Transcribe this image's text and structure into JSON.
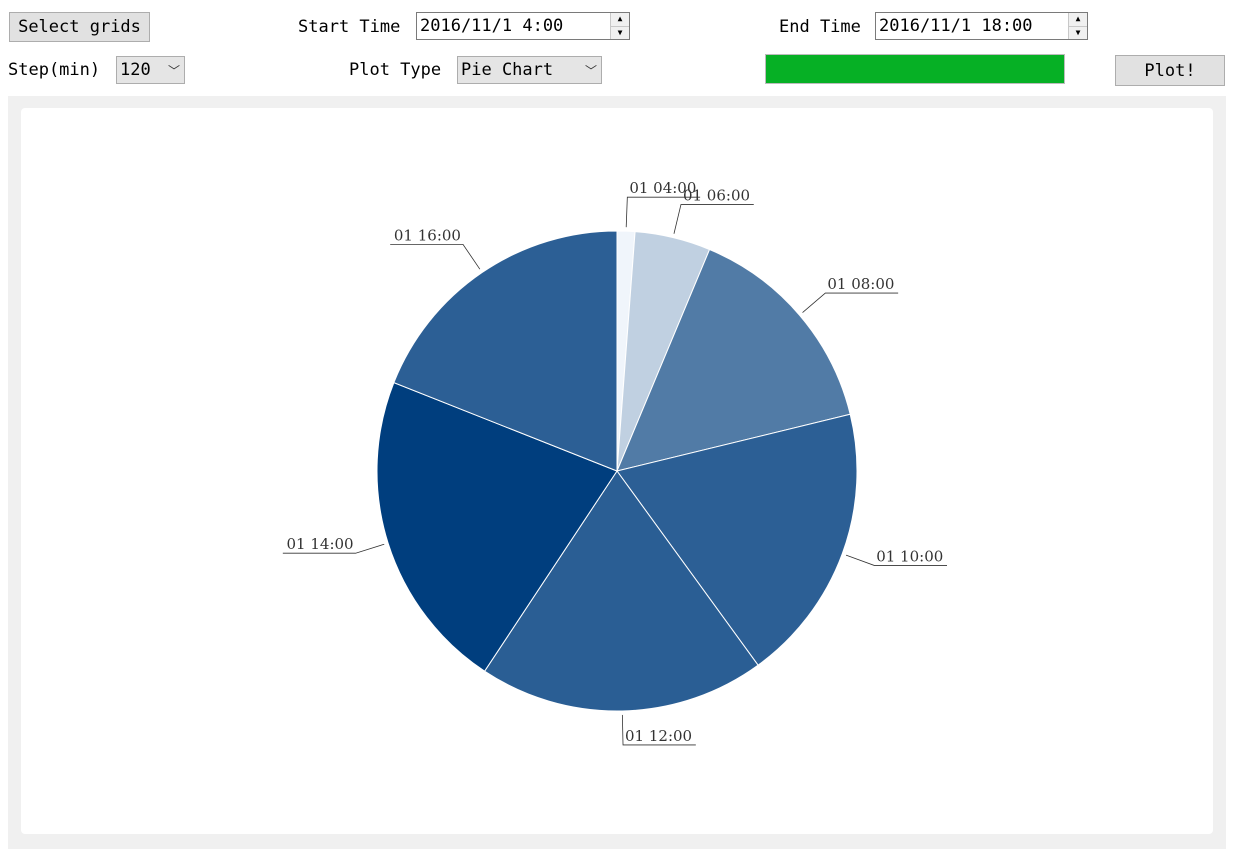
{
  "toolbar": {
    "select_grids_label": "Select grids",
    "start_time_label": "Start Time",
    "start_time_value": "2016/11/1 4:00",
    "end_time_label": "End Time",
    "end_time_value": "2016/11/1 18:00",
    "step_label": "Step(min)",
    "step_value": "120",
    "plot_type_label": "Plot Type",
    "plot_type_value": "Pie Chart",
    "progress_percent": 100,
    "progress_color": "#06b025",
    "plot_button_label": "Plot!",
    "icons": {
      "spin_up": "up-arrow-icon",
      "spin_down": "down-arrow-icon",
      "dropdown": "chevron-down-icon"
    }
  },
  "chart_data": {
    "type": "pie",
    "title": "",
    "start_angle": "12 o'clock, clockwise",
    "labels": [
      "01 04:00",
      "01 06:00",
      "01 08:00",
      "01 10:00",
      "01 12:00",
      "01 14:00",
      "01 16:00"
    ],
    "values": [
      1.2,
      5.1,
      14.9,
      18.8,
      19.3,
      21.7,
      19.0
    ],
    "colors": [
      "#f0f5fb",
      "#c0d0e1",
      "#517ba6",
      "#2c5f95",
      "#2a5e94",
      "#003e7e",
      "#2c5f95"
    ]
  }
}
